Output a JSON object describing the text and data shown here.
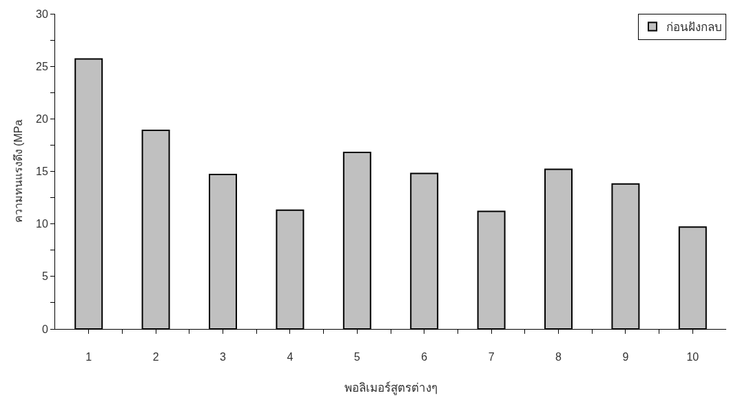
{
  "chart_data": {
    "type": "bar",
    "xlabel": "พอลิเมอร์สูตรต่างๆ",
    "ylabel": "ความทนแรงดึง (MPa",
    "categories": [
      "1",
      "2",
      "3",
      "4",
      "5",
      "6",
      "7",
      "8",
      "9",
      "10"
    ],
    "series": [
      {
        "name": "ก่อนฝังกลบ",
        "color": "#c0c0c0",
        "values": [
          25.7,
          18.9,
          14.7,
          11.3,
          16.8,
          14.8,
          11.2,
          15.2,
          13.8,
          9.7
        ]
      }
    ],
    "ylim": [
      0,
      30
    ],
    "yticks": [
      0,
      {
        "value": 2.5,
        "label": null
      },
      5,
      {
        "value": 7.5,
        "label": null
      },
      10,
      {
        "value": 12.5,
        "label": null
      },
      15,
      {
        "value": 17.5,
        "label": null
      },
      20,
      {
        "value": 22.5,
        "label": null
      },
      25,
      {
        "value": 27.5,
        "label": null
      },
      30
    ],
    "legend": "top right"
  }
}
